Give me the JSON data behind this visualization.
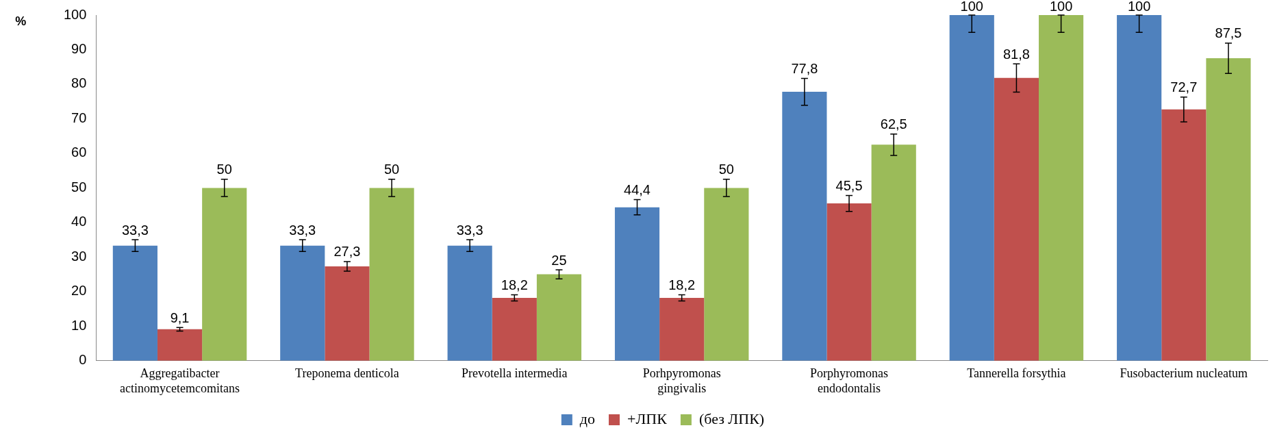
{
  "chart_data": {
    "type": "bar",
    "ylabel": "%",
    "categories": [
      "Aggregatibacter actinomycetemcomitans",
      "Treponema denticola",
      "Prevotella intermedia",
      "Porhpyromonas gingivalis",
      "Porphyromonas endodontalis",
      "Tannerella forsythia",
      "Fusobacterium nucleatum"
    ],
    "series": [
      {
        "name": "до",
        "color": "#4f81bd",
        "values": [
          33.3,
          33.3,
          33.3,
          44.4,
          77.8,
          100,
          100
        ],
        "value_labels": [
          "33,3",
          "33,3",
          "33,3",
          "44,4",
          "77,8",
          "100",
          "100"
        ],
        "errors": [
          1.7,
          1.7,
          1.7,
          2.2,
          3.9,
          [
            95,
            100
          ],
          [
            95,
            100
          ]
        ]
      },
      {
        "name": "+ЛПК",
        "color": "#c0504d",
        "values": [
          9.1,
          27.3,
          18.2,
          18.2,
          45.5,
          81.8,
          72.7
        ],
        "value_labels": [
          "9,1",
          "27,3",
          "18,2",
          "18,2",
          "45,5",
          "81,8",
          "72,7"
        ],
        "errors": [
          0.5,
          1.4,
          0.9,
          0.9,
          2.3,
          4.1,
          3.6
        ]
      },
      {
        "name": "(без ЛПК)",
        "color": "#9bbb59",
        "values": [
          50,
          50,
          25,
          50,
          62.5,
          100,
          87.5
        ],
        "value_labels": [
          "50",
          "50",
          "25",
          "50",
          "62,5",
          "100",
          "87,5"
        ],
        "errors": [
          2.5,
          2.5,
          1.3,
          2.5,
          3.1,
          [
            95,
            100
          ],
          4.4
        ]
      }
    ],
    "ylim": [
      0,
      100
    ],
    "yticks": [
      0,
      10,
      20,
      30,
      40,
      50,
      60,
      70,
      80,
      90,
      100
    ],
    "grid": false,
    "legend": "bottom"
  }
}
